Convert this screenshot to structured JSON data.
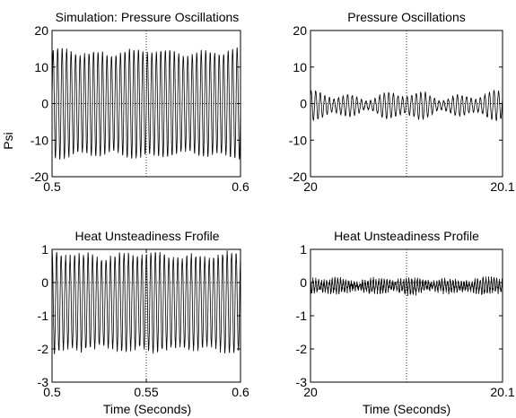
{
  "figure": {
    "background": "#ffffff",
    "line_color": "#000000",
    "grid_color": "#000000"
  },
  "chart_data": [
    {
      "type": "line",
      "title": "Simulation: Pressure Oscillations",
      "xlabel": "",
      "ylabel": "Psi",
      "xlim": [
        0.5,
        0.6
      ],
      "ylim": [
        -20,
        20
      ],
      "xticks": [
        0.5,
        0.6
      ],
      "xticklabels": [
        "0.5",
        "0.6"
      ],
      "yticks": [
        -20,
        -10,
        0,
        10,
        20
      ],
      "yticklabels": [
        "-20",
        "-10",
        "0",
        "10",
        "20"
      ],
      "grid": "dotted at x midpoint and y=0",
      "signal": {
        "offset": 0,
        "amplitude": 14,
        "cycles": 42,
        "amplitude_variation": 0.08,
        "noise": 0.4
      }
    },
    {
      "type": "line",
      "title": "Pressure Oscillations",
      "xlabel": "",
      "ylabel": "",
      "xlim": [
        20,
        20.1
      ],
      "ylim": [
        -20,
        20
      ],
      "xticks": [
        20,
        20.1
      ],
      "xticklabels": [
        "20",
        "20.1"
      ],
      "yticks": [
        -20,
        -10,
        0,
        10,
        20
      ],
      "yticklabels": [
        "-20",
        "-10",
        "0",
        "10",
        "20"
      ],
      "grid": "dotted at x midpoint and y=0",
      "signal": {
        "offset": -0.5,
        "amplitude": 2.5,
        "cycles": 42,
        "amplitude_variation": 0.6,
        "noise": 0.3
      }
    },
    {
      "type": "line",
      "title": "Heat Unsteadiness Frofile",
      "xlabel": "Time  (Seconds)",
      "ylabel": "",
      "xlim": [
        0.5,
        0.6
      ],
      "ylim": [
        -3,
        1
      ],
      "xticks": [
        0.5,
        0.55,
        0.6
      ],
      "xticklabels": [
        "0.5",
        "0.55",
        "0.6"
      ],
      "yticks": [
        -3,
        -2,
        -1,
        0,
        1
      ],
      "yticklabels": [
        "-3",
        "-2",
        "-1",
        "0",
        "1"
      ],
      "grid": "dotted at x=0.55 and y=0",
      "signal": {
        "offset": -0.6,
        "amplitude": 1.4,
        "cycles": 42,
        "amplitude_variation": 0.08,
        "noise": 0.08
      }
    },
    {
      "type": "line",
      "title": "Heat Unsteadiness Profile",
      "xlabel": "Time  (Seconds)",
      "ylabel": "",
      "xlim": [
        20,
        20.1
      ],
      "ylim": [
        -3,
        1
      ],
      "xticks": [
        20,
        20.1
      ],
      "xticklabels": [
        "20",
        "20.1"
      ],
      "yticks": [
        -3,
        -2,
        -1,
        0,
        1
      ],
      "yticklabels": [
        "-3",
        "-2",
        "-1",
        "0",
        "1"
      ],
      "grid": "dotted at x midpoint and y=0",
      "signal": {
        "offset": -0.1,
        "amplitude": 0.15,
        "cycles": 70,
        "amplitude_variation": 0.5,
        "noise": 0.1
      }
    }
  ]
}
